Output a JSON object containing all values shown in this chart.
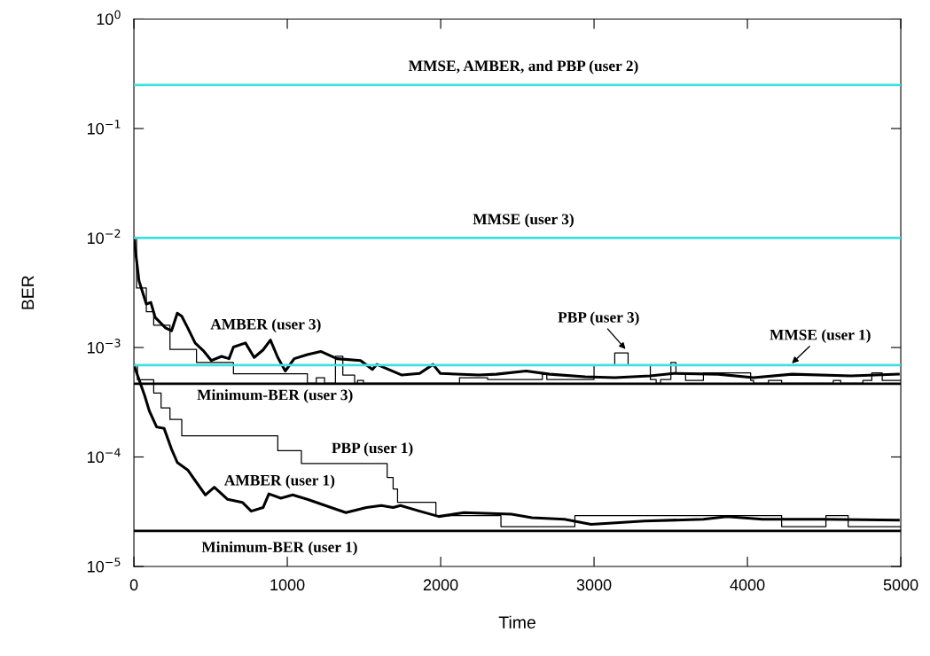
{
  "chart_data": {
    "type": "line",
    "xlabel": "Time",
    "ylabel": "BER",
    "log": "y",
    "xlim": [
      0,
      5000
    ],
    "xticks": [
      0,
      1000,
      2000,
      3000,
      4000,
      5000
    ],
    "ylim": [
      1e-05,
      1
    ],
    "yticks": [
      {
        "value": 1,
        "label": "10$^{0}$"
      },
      {
        "value": 0.1,
        "label": "10$^{−1}$"
      },
      {
        "value": 0.01,
        "label": "10$^{−2}$"
      },
      {
        "value": 0.001,
        "label": "10$^{−3}$"
      },
      {
        "value": 0.0001,
        "label": "10$^{−4}$"
      },
      {
        "value": 1e-05,
        "label": "10$^{−5}$"
      }
    ],
    "grid": false,
    "legend": false,
    "series": [
      {
        "name": "AMBER (user 3)",
        "color": "#000000",
        "x": [
          0,
          33,
          81,
          110,
          139,
          206,
          245,
          283,
          312,
          351,
          399,
          457,
          505,
          572,
          620,
          649,
          727,
          784,
          842,
          890,
          938,
          987,
          1045,
          1131,
          1218,
          1324,
          1478,
          1555,
          1584,
          1747,
          1863,
          1950,
          1998,
          2249,
          2364,
          2557,
          2711,
          2942,
          3135,
          3366,
          3520,
          3809,
          4040,
          4291,
          4676,
          4984
        ],
        "values": [
          0.01,
          0.00407,
          0.00249,
          0.00258,
          0.00188,
          0.00151,
          0.00142,
          0.00206,
          0.00193,
          0.00151,
          0.0011,
          0.00092,
          0.00076,
          0.00083,
          0.00079,
          0.00101,
          0.0011,
          0.00081,
          0.00095,
          0.00117,
          0.00081,
          0.00061,
          0.00079,
          0.00086,
          0.00092,
          0.00079,
          0.00076,
          0.00063,
          0.0007,
          0.00056,
          0.00058,
          0.0007,
          0.00058,
          0.00056,
          0.00057,
          0.00061,
          0.00057,
          0.00054,
          0.00053,
          0.00055,
          0.00058,
          0.00057,
          0.00053,
          0.00057,
          0.00055,
          0.00057
        ]
      },
      {
        "name": "PBP (user 3)",
        "type": "step",
        "color": "#000000",
        "x": [
          0,
          17,
          81,
          129,
          235,
          408,
          649,
          1131,
          1189,
          1243,
          1314,
          1362,
          1439,
          1458,
          1497,
          2123,
          2306,
          2663,
          2692,
          3000,
          3135,
          3222,
          3367,
          3405,
          3434,
          3501,
          3534,
          3597,
          3713,
          4021,
          4040,
          4137,
          4223,
          4560,
          4608,
          4753,
          4811,
          4879,
          5000
        ],
        "values": [
          0.01,
          0.00349,
          0.00212,
          0.0016,
          0.00096,
          0.00073,
          0.000575,
          0.00047,
          0.00053,
          0.00047,
          0.00083,
          0.00056,
          0.00047,
          0.0005,
          0.00047,
          0.00053,
          0.00051,
          0.00057,
          0.00051,
          0.00069,
          0.00089,
          0.00069,
          0.00051,
          0.00047,
          0.00051,
          0.00073,
          0.000585,
          0.0005,
          0.000585,
          0.0005,
          0.00047,
          0.0005,
          0.00047,
          0.0005,
          0.00047,
          0.0005,
          0.000585,
          0.0005,
          0.0005
        ]
      },
      {
        "name": "AMBER (user 1)",
        "color": "#000000",
        "x": [
          0,
          71,
          100,
          148,
          197,
          245,
          283,
          351,
          399,
          466,
          524,
          611,
          707,
          765,
          842,
          880,
          958,
          1035,
          1131,
          1285,
          1382,
          1516,
          1613,
          1690,
          1738,
          1863,
          1988,
          2152,
          2461,
          2595,
          2807,
          2981,
          3328,
          3713,
          3867,
          4098,
          4484,
          4984
        ],
        "values": [
          0.00069,
          0.00036,
          0.000264,
          0.000188,
          0.000182,
          0.000118,
          8.9e-05,
          7.6e-05,
          6.1e-05,
          4.5e-05,
          5.3e-05,
          4.1e-05,
          3.85e-05,
          3.2e-05,
          3.45e-05,
          4.6e-05,
          4.2e-05,
          4.5e-05,
          4.1e-05,
          3.45e-05,
          3.1e-05,
          3.45e-05,
          3.6e-05,
          3.45e-05,
          3.6e-05,
          3.2e-05,
          2.86e-05,
          3.1e-05,
          3e-05,
          2.79e-05,
          2.7e-05,
          2.42e-05,
          2.6e-05,
          2.7e-05,
          2.85e-05,
          2.7e-05,
          2.7e-05,
          2.65e-05
        ]
      },
      {
        "name": "PBP (user 1)",
        "type": "step",
        "color": "#000000",
        "x": [
          0,
          23,
          129,
          177,
          235,
          312,
          938,
          1092,
          1651,
          1690,
          1719,
          1969,
          2393,
          2875,
          4223,
          4512,
          4657,
          5000
        ],
        "values": [
          0.00069,
          0.000508,
          0.000384,
          0.000281,
          0.00022,
          0.000156,
          0.000114,
          8.7e-05,
          6.5e-05,
          5.1e-05,
          3.85e-05,
          2.91e-05,
          2.31e-05,
          2.91e-05,
          2.31e-05,
          2.91e-05,
          2.31e-05,
          2.31e-05
        ]
      }
    ],
    "ref_lines": [
      {
        "axis": "y",
        "value": 0.25,
        "color": "#3fe0e0",
        "label": "MMSE, AMBER, and PBP (user 2)"
      },
      {
        "axis": "y",
        "value": 0.01,
        "color": "#3fe0e0",
        "label": "MMSE (user 3)"
      },
      {
        "axis": "y",
        "value": 0.00069,
        "color": "#3fe0e0",
        "label": "MMSE (user 1)"
      },
      {
        "axis": "y",
        "value": 0.000466,
        "color": "#000000",
        "label": "Minimum-BER (user 3)"
      },
      {
        "axis": "y",
        "value": 2.11e-05,
        "color": "#000000",
        "label": "Minimum-BER (user 1)"
      }
    ]
  }
}
